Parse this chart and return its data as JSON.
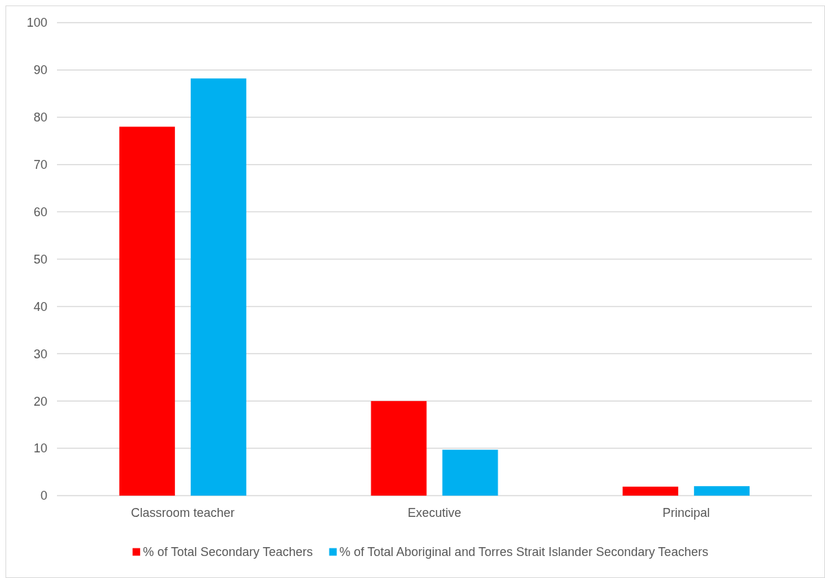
{
  "chart_data": {
    "type": "bar",
    "categories": [
      "Classroom teacher",
      "Executive",
      "Principal"
    ],
    "series": [
      {
        "name": "% of Total Secondary Teachers",
        "color": "#ff0000",
        "values": [
          78,
          20,
          1.9
        ]
      },
      {
        "name": "% of Total Aboriginal and Torres Strait Islander Secondary Teachers",
        "color": "#00b0f0",
        "values": [
          88.2,
          9.7,
          2
        ]
      }
    ],
    "ylim": [
      0,
      100
    ],
    "yticks": [
      0,
      10,
      20,
      30,
      40,
      50,
      60,
      70,
      80,
      90,
      100
    ],
    "grid": "y",
    "legend": "bottom"
  }
}
